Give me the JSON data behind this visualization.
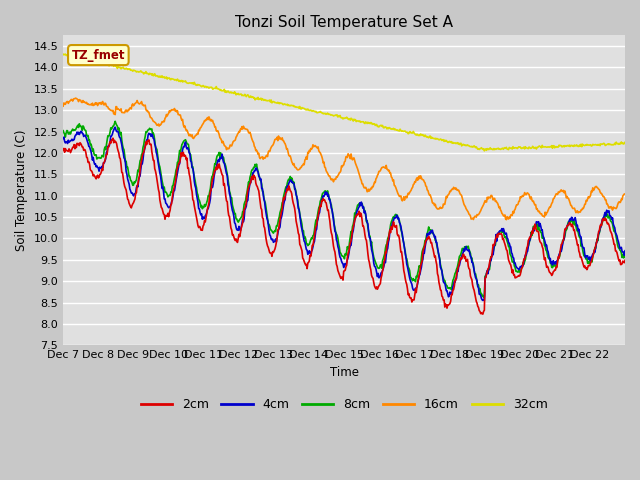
{
  "title": "Tonzi Soil Temperature Set A",
  "ylabel": "Soil Temperature (C)",
  "xlabel": "Time",
  "annotation_label": "TZ_fmet",
  "annotation_bg": "#ffffcc",
  "annotation_border": "#cc9900",
  "ylim": [
    7.5,
    14.75
  ],
  "fig_bg_color": "#c8c8c8",
  "plot_bg": "#e0e0e0",
  "grid_color": "white",
  "series_colors": {
    "2cm": "#dd0000",
    "4cm": "#0000cc",
    "8cm": "#00aa00",
    "16cm": "#ff8800",
    "32cm": "#dddd00"
  },
  "xtick_labels": [
    "Dec 7",
    "Dec 8",
    "Dec 9",
    "Dec 10",
    "Dec 11",
    "Dec 12",
    "Dec 13",
    "Dec 14",
    "Dec 15",
    "Dec 16",
    "Dec 17",
    "Dec 18",
    "Dec 19",
    "Dec 20",
    "Dec 21",
    "Dec 22"
  ],
  "legend_labels": [
    "2cm",
    "4cm",
    "8cm",
    "16cm",
    "32cm"
  ],
  "legend_colors": [
    "#dd0000",
    "#0000cc",
    "#00aa00",
    "#ff8800",
    "#dddd00"
  ]
}
